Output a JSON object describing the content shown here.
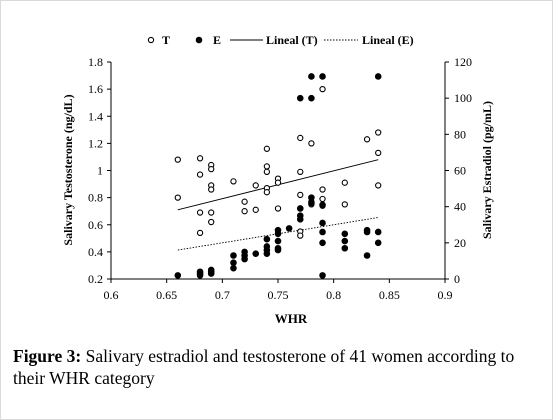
{
  "chart_data": {
    "type": "scatter",
    "xlabel": "WHR",
    "ylabel_left": "Salivary Testosterone (ng/dL)",
    "ylabel_right": "Salivary Estradiol (pg/mL)",
    "xlim": [
      0.6,
      0.9
    ],
    "ylim_left": [
      0.2,
      1.8
    ],
    "ylim_right": [
      0,
      120
    ],
    "x_ticks": [
      "0.6",
      "0.65",
      "0.7",
      "0.75",
      "0.8",
      "0.85",
      "0.9"
    ],
    "y_left_ticks": [
      "0.2",
      "0.4",
      "0.6",
      "0.8",
      "1",
      "1.2",
      "1.4",
      "1.6",
      "1.8"
    ],
    "y_right_ticks": [
      "0",
      "20",
      "40",
      "60",
      "80",
      "100",
      "120"
    ],
    "grid": false,
    "legend_position": "top",
    "series": [
      {
        "name": "T",
        "marker": "open-circle",
        "axis": "left",
        "points": [
          [
            0.66,
            1.08
          ],
          [
            0.66,
            0.8
          ],
          [
            0.68,
            1.09
          ],
          [
            0.68,
            0.97
          ],
          [
            0.68,
            0.69
          ],
          [
            0.68,
            0.54
          ],
          [
            0.69,
            1.04
          ],
          [
            0.69,
            1.01
          ],
          [
            0.69,
            0.89
          ],
          [
            0.69,
            0.86
          ],
          [
            0.69,
            0.69
          ],
          [
            0.69,
            0.62
          ],
          [
            0.71,
            0.92
          ],
          [
            0.72,
            0.77
          ],
          [
            0.72,
            0.7
          ],
          [
            0.73,
            0.89
          ],
          [
            0.73,
            0.71
          ],
          [
            0.74,
            1.16
          ],
          [
            0.74,
            1.03
          ],
          [
            0.74,
            0.99
          ],
          [
            0.74,
            0.87
          ],
          [
            0.74,
            0.84
          ],
          [
            0.75,
            0.94
          ],
          [
            0.75,
            0.91
          ],
          [
            0.75,
            0.72
          ],
          [
            0.77,
            1.24
          ],
          [
            0.77,
            0.99
          ],
          [
            0.77,
            0.82
          ],
          [
            0.77,
            0.72
          ],
          [
            0.77,
            0.55
          ],
          [
            0.77,
            0.52
          ],
          [
            0.78,
            1.2
          ],
          [
            0.78,
            0.77
          ],
          [
            0.78,
            0.75
          ],
          [
            0.79,
            1.6
          ],
          [
            0.79,
            0.86
          ],
          [
            0.79,
            0.79
          ],
          [
            0.79,
            0.74
          ],
          [
            0.81,
            0.91
          ],
          [
            0.81,
            0.75
          ],
          [
            0.83,
            1.23
          ],
          [
            0.84,
            1.28
          ],
          [
            0.84,
            1.13
          ],
          [
            0.84,
            0.89
          ]
        ]
      },
      {
        "name": "E",
        "marker": "filled-circle",
        "axis": "right",
        "points": [
          [
            0.66,
            2
          ],
          [
            0.68,
            4
          ],
          [
            0.68,
            3
          ],
          [
            0.68,
            2
          ],
          [
            0.69,
            5
          ],
          [
            0.69,
            4
          ],
          [
            0.69,
            3
          ],
          [
            0.71,
            13
          ],
          [
            0.71,
            9
          ],
          [
            0.71,
            6
          ],
          [
            0.72,
            15
          ],
          [
            0.72,
            13
          ],
          [
            0.72,
            11
          ],
          [
            0.73,
            14
          ],
          [
            0.74,
            22
          ],
          [
            0.74,
            18
          ],
          [
            0.74,
            16
          ],
          [
            0.74,
            14
          ],
          [
            0.75,
            27
          ],
          [
            0.75,
            25
          ],
          [
            0.75,
            21
          ],
          [
            0.75,
            17
          ],
          [
            0.75,
            16
          ],
          [
            0.76,
            28
          ],
          [
            0.77,
            100
          ],
          [
            0.77,
            39
          ],
          [
            0.77,
            35
          ],
          [
            0.77,
            33
          ],
          [
            0.78,
            112
          ],
          [
            0.78,
            100
          ],
          [
            0.78,
            45
          ],
          [
            0.78,
            42
          ],
          [
            0.79,
            112
          ],
          [
            0.79,
            41
          ],
          [
            0.79,
            31
          ],
          [
            0.79,
            26
          ],
          [
            0.79,
            20
          ],
          [
            0.79,
            2
          ],
          [
            0.81,
            25
          ],
          [
            0.81,
            21
          ],
          [
            0.81,
            17
          ],
          [
            0.83,
            27
          ],
          [
            0.83,
            26
          ],
          [
            0.83,
            13
          ],
          [
            0.84,
            112
          ],
          [
            0.84,
            26
          ],
          [
            0.84,
            20
          ]
        ]
      },
      {
        "name": "Lineal (T)",
        "type": "trendline",
        "style": "solid",
        "axis": "left",
        "points": [
          [
            0.66,
            0.71
          ],
          [
            0.84,
            1.08
          ]
        ]
      },
      {
        "name": "Lineal (E)",
        "type": "trendline",
        "style": "dotted",
        "axis": "right",
        "points": [
          [
            0.66,
            16
          ],
          [
            0.84,
            34
          ]
        ]
      }
    ]
  },
  "caption": {
    "label": "Figure 3:",
    "text": " Salivary estradiol and testosterone of 41 women according to their WHR category"
  }
}
